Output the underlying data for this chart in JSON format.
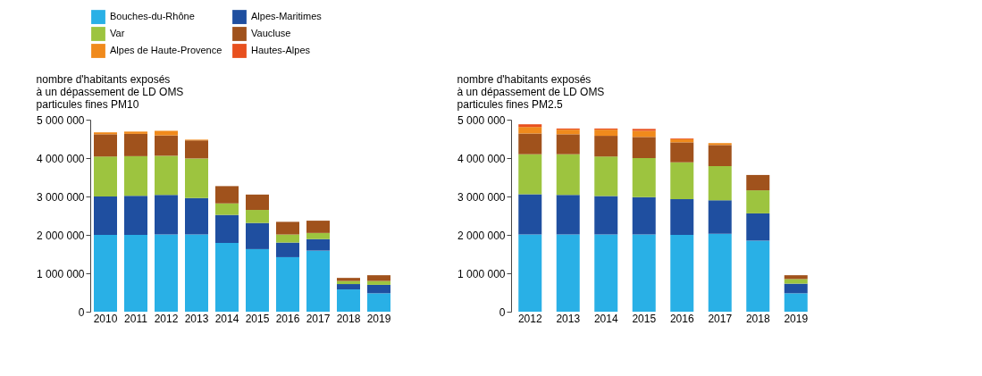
{
  "chart_data": [
    {
      "type": "bar",
      "stacked": true,
      "title": "nombre d'habitants exposés\nà un dépassement de LD OMS\nparticules fines PM10",
      "legend": "top",
      "categories": [
        "2010",
        "2011",
        "2012",
        "2013",
        "2014",
        "2015",
        "2016",
        "2017",
        "2018",
        "2019"
      ],
      "ylim": [
        0,
        5000000
      ],
      "yticks": [
        {
          "value": 0,
          "label": "0"
        },
        {
          "value": 1000000,
          "label": "1 000 000"
        },
        {
          "value": 2000000,
          "label": "2 000 000"
        },
        {
          "value": 3000000,
          "label": "3 000 000"
        },
        {
          "value": 4000000,
          "label": "4 000 000"
        },
        {
          "value": 5000000,
          "label": "5 000 000"
        }
      ],
      "series": [
        {
          "name": "Bouches-du-Rhône",
          "color": "#29b0e6",
          "values": [
            2000000,
            2000000,
            2010000,
            2010000,
            1790000,
            1630000,
            1420000,
            1590000,
            580000,
            480000
          ]
        },
        {
          "name": "Alpes-Maritimes",
          "color": "#1f4fa0",
          "values": [
            1000000,
            1020000,
            1030000,
            950000,
            730000,
            680000,
            380000,
            300000,
            140000,
            220000
          ]
        },
        {
          "name": "Var",
          "color": "#9dc43f",
          "values": [
            1040000,
            1030000,
            1020000,
            1030000,
            300000,
            340000,
            210000,
            160000,
            80000,
            100000
          ]
        },
        {
          "name": "Vaucluse",
          "color": "#a0521c",
          "values": [
            580000,
            580000,
            530000,
            470000,
            450000,
            400000,
            330000,
            320000,
            80000,
            150000
          ]
        },
        {
          "name": "Alpes de Haute-Provence",
          "color": "#f08a1c",
          "values": [
            50000,
            60000,
            120000,
            20000,
            0,
            0,
            0,
            0,
            0,
            0
          ]
        }
      ]
    },
    {
      "type": "bar",
      "stacked": true,
      "title": "nombre d'habitants exposés\nà un dépassement de LD OMS\nparticules fines PM2.5",
      "legend": "top",
      "categories": [
        "2012",
        "2013",
        "2014",
        "2015",
        "2016",
        "2017",
        "2018",
        "2019"
      ],
      "ylim": [
        0,
        5000000
      ],
      "yticks": [
        {
          "value": 0,
          "label": "0"
        },
        {
          "value": 1000000,
          "label": "1 000 000"
        },
        {
          "value": 2000000,
          "label": "2 000 000"
        },
        {
          "value": 3000000,
          "label": "3 000 000"
        },
        {
          "value": 4000000,
          "label": "4 000 000"
        },
        {
          "value": 5000000,
          "label": "5 000 000"
        }
      ],
      "series": [
        {
          "name": "Bouches-du-Rhône",
          "color": "#29b0e6",
          "values": [
            2010000,
            2010000,
            2010000,
            2010000,
            2000000,
            2030000,
            1850000,
            480000
          ]
        },
        {
          "name": "Alpes-Maritimes",
          "color": "#1f4fa0",
          "values": [
            1050000,
            1030000,
            1000000,
            970000,
            930000,
            870000,
            710000,
            250000
          ]
        },
        {
          "name": "Var",
          "color": "#9dc43f",
          "values": [
            1040000,
            1060000,
            1030000,
            1020000,
            960000,
            890000,
            600000,
            120000
          ]
        },
        {
          "name": "Vaucluse",
          "color": "#a0521c",
          "values": [
            540000,
            520000,
            540000,
            550000,
            520000,
            550000,
            400000,
            100000
          ]
        },
        {
          "name": "Alpes de Haute-Provence",
          "color": "#f08a1c",
          "values": [
            170000,
            120000,
            160000,
            160000,
            80000,
            50000,
            0,
            0
          ]
        },
        {
          "name": "Hautes-Alpes",
          "color": "#e8501e",
          "values": [
            70000,
            30000,
            30000,
            50000,
            20000,
            0,
            0,
            0
          ]
        }
      ]
    }
  ]
}
